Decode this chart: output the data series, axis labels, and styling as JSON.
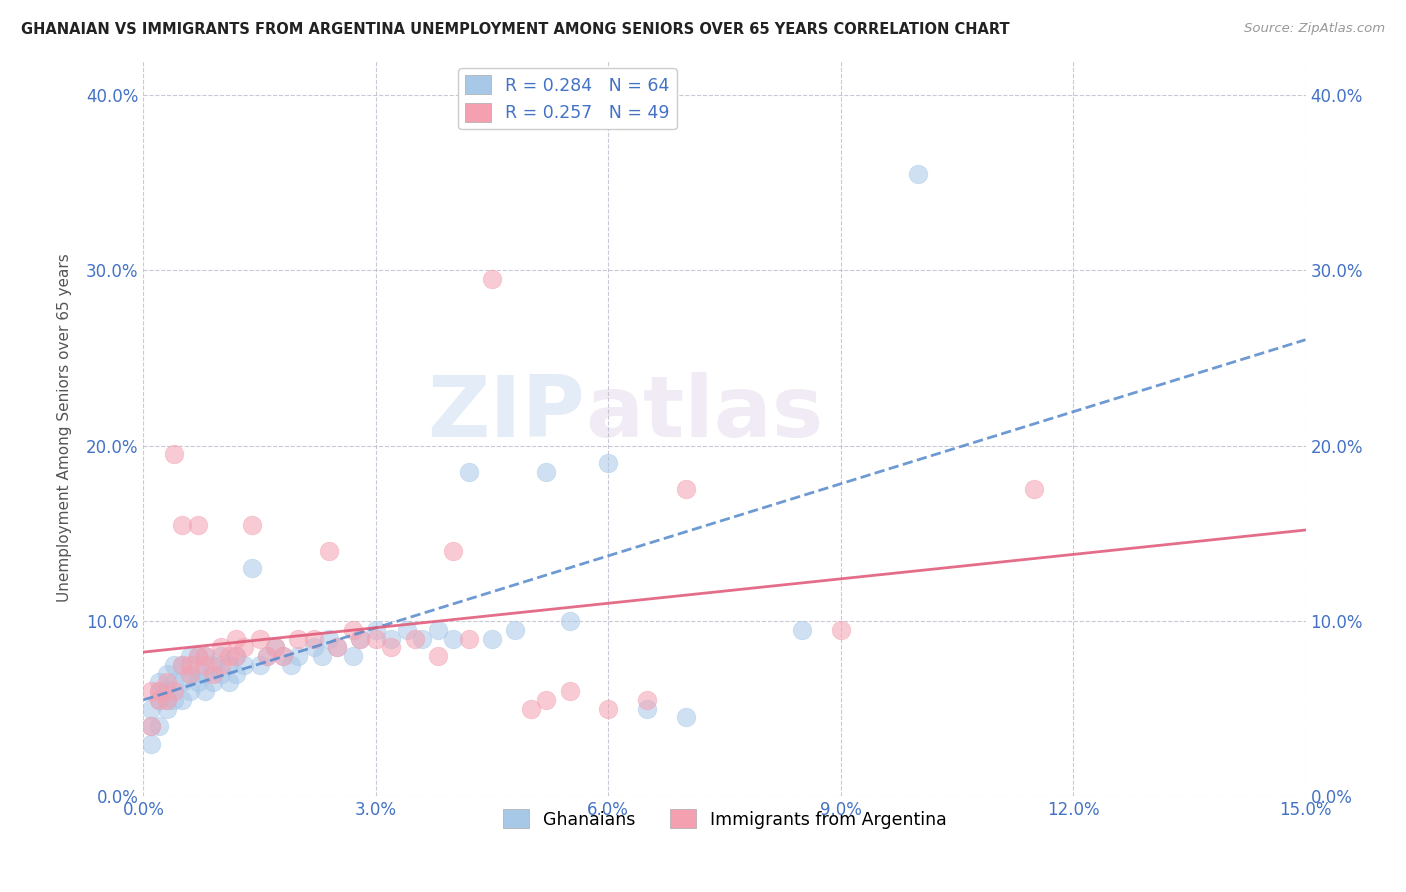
{
  "title": "GHANAIAN VS IMMIGRANTS FROM ARGENTINA UNEMPLOYMENT AMONG SENIORS OVER 65 YEARS CORRELATION CHART",
  "source": "Source: ZipAtlas.com",
  "ylabel": "Unemployment Among Seniors over 65 years",
  "xlim": [
    0.0,
    0.15
  ],
  "ylim": [
    0.0,
    0.42
  ],
  "xticks": [
    0.0,
    0.03,
    0.06,
    0.09,
    0.12,
    0.15
  ],
  "yticks": [
    0.0,
    0.1,
    0.2,
    0.3,
    0.4
  ],
  "ghanaians_R": 0.284,
  "ghanaians_N": 64,
  "argentina_R": 0.257,
  "argentina_N": 49,
  "ghanaian_color": "#a8c8e8",
  "argentina_color": "#f4a0b0",
  "ghanaian_line_color": "#5588cc",
  "argentina_line_color": "#e05575",
  "watermark_zip": "ZIP",
  "watermark_atlas": "atlas",
  "ghanaians_x": [
    0.001,
    0.001,
    0.001,
    0.002,
    0.002,
    0.002,
    0.002,
    0.003,
    0.003,
    0.003,
    0.003,
    0.004,
    0.004,
    0.004,
    0.005,
    0.005,
    0.005,
    0.006,
    0.006,
    0.006,
    0.007,
    0.007,
    0.007,
    0.008,
    0.008,
    0.008,
    0.009,
    0.009,
    0.01,
    0.01,
    0.011,
    0.011,
    0.012,
    0.012,
    0.013,
    0.014,
    0.015,
    0.016,
    0.017,
    0.018,
    0.019,
    0.02,
    0.022,
    0.023,
    0.024,
    0.025,
    0.027,
    0.028,
    0.03,
    0.032,
    0.034,
    0.036,
    0.038,
    0.04,
    0.042,
    0.045,
    0.048,
    0.052,
    0.055,
    0.06,
    0.065,
    0.07,
    0.085,
    0.1
  ],
  "ghanaians_y": [
    0.03,
    0.04,
    0.05,
    0.04,
    0.055,
    0.06,
    0.065,
    0.05,
    0.055,
    0.06,
    0.07,
    0.055,
    0.065,
    0.075,
    0.055,
    0.065,
    0.075,
    0.06,
    0.07,
    0.08,
    0.065,
    0.07,
    0.08,
    0.06,
    0.07,
    0.08,
    0.065,
    0.075,
    0.07,
    0.08,
    0.065,
    0.075,
    0.07,
    0.08,
    0.075,
    0.13,
    0.075,
    0.08,
    0.085,
    0.08,
    0.075,
    0.08,
    0.085,
    0.08,
    0.09,
    0.085,
    0.08,
    0.09,
    0.095,
    0.09,
    0.095,
    0.09,
    0.095,
    0.09,
    0.185,
    0.09,
    0.095,
    0.185,
    0.1,
    0.19,
    0.05,
    0.045,
    0.095,
    0.355
  ],
  "argentina_x": [
    0.001,
    0.001,
    0.002,
    0.002,
    0.003,
    0.003,
    0.004,
    0.004,
    0.005,
    0.005,
    0.006,
    0.006,
    0.007,
    0.007,
    0.008,
    0.008,
    0.009,
    0.01,
    0.01,
    0.011,
    0.012,
    0.012,
    0.013,
    0.014,
    0.015,
    0.016,
    0.017,
    0.018,
    0.02,
    0.022,
    0.024,
    0.025,
    0.027,
    0.028,
    0.03,
    0.032,
    0.035,
    0.038,
    0.04,
    0.042,
    0.045,
    0.05,
    0.052,
    0.055,
    0.06,
    0.065,
    0.07,
    0.09,
    0.115
  ],
  "argentina_y": [
    0.04,
    0.06,
    0.055,
    0.06,
    0.055,
    0.065,
    0.06,
    0.195,
    0.075,
    0.155,
    0.07,
    0.075,
    0.155,
    0.08,
    0.075,
    0.08,
    0.07,
    0.075,
    0.085,
    0.08,
    0.08,
    0.09,
    0.085,
    0.155,
    0.09,
    0.08,
    0.085,
    0.08,
    0.09,
    0.09,
    0.14,
    0.085,
    0.095,
    0.09,
    0.09,
    0.085,
    0.09,
    0.08,
    0.14,
    0.09,
    0.295,
    0.05,
    0.055,
    0.06,
    0.05,
    0.055,
    0.175,
    0.095,
    0.175
  ]
}
